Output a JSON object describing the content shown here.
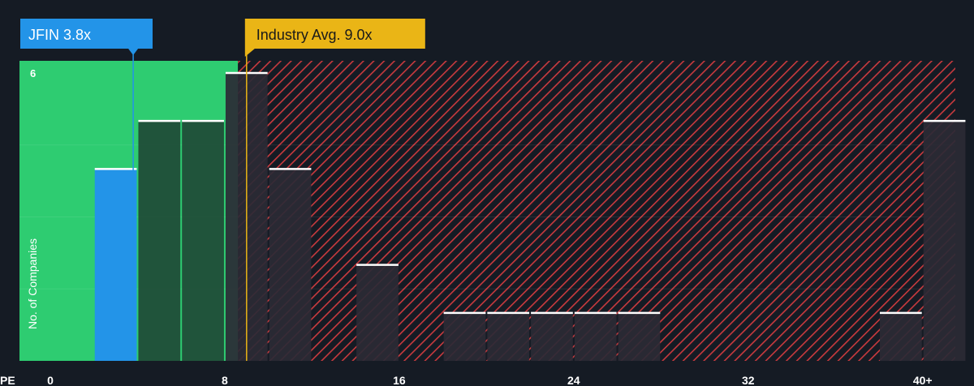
{
  "chart_data": {
    "type": "bar",
    "x_axis_label": "PE",
    "y_axis_label": "No. of Companies",
    "x_ticks": [
      {
        "value": 0,
        "label": "0"
      },
      {
        "value": 8,
        "label": "8"
      },
      {
        "value": 16,
        "label": "16"
      },
      {
        "value": 24,
        "label": "24"
      },
      {
        "value": 32,
        "label": "32"
      },
      {
        "value": 40,
        "label": "40+"
      }
    ],
    "y_ticks": [
      {
        "value": 6,
        "label": "6"
      }
    ],
    "xlim": [
      0,
      41.5
    ],
    "ylim": [
      0,
      6.2
    ],
    "bin_width": 2,
    "bins": [
      {
        "start": 2,
        "count": 4
      },
      {
        "start": 4,
        "count": 5
      },
      {
        "start": 6,
        "count": 5
      },
      {
        "start": 8,
        "count": 6
      },
      {
        "start": 10,
        "count": 4
      },
      {
        "start": 14,
        "count": 2
      },
      {
        "start": 18,
        "count": 1
      },
      {
        "start": 20,
        "count": 1
      },
      {
        "start": 22,
        "count": 1
      },
      {
        "start": 24,
        "count": 1
      },
      {
        "start": 26,
        "count": 1
      },
      {
        "start": 38,
        "count": 1
      },
      {
        "start": 40,
        "count": 5
      }
    ],
    "company": {
      "label": "JFIN 3.8x",
      "value": 3.8,
      "color": "#2394e8"
    },
    "industry_avg": {
      "label": "Industry Avg. 9.0x",
      "value": 9.0,
      "color": "#eab516"
    },
    "colors": {
      "background": "#151b24",
      "undervalued_zone": "#2ecc71",
      "overvalued_stripe": "#c93a3e",
      "bar_in_green": "#1f4a36",
      "bar_in_red": "#2b2a35",
      "company_bar": "#2394e8",
      "bar_top": "#ffffff"
    }
  }
}
